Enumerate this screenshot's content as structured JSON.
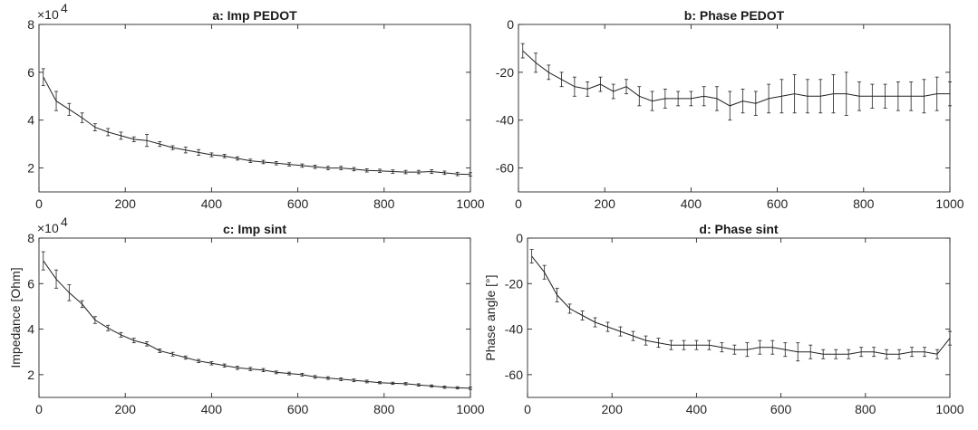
{
  "chart_data": [
    {
      "type": "line",
      "title": "a: Imp PEDOT",
      "xlabel": "",
      "ylabel": "",
      "exponent_label": "×10",
      "exponent_power": "4",
      "xlim": [
        0,
        1000
      ],
      "ylim": [
        10000,
        80000
      ],
      "xticks": [
        0,
        200,
        400,
        600,
        800,
        1000
      ],
      "yticks": [
        20000,
        40000,
        60000,
        80000
      ],
      "yticklabels": [
        "2",
        "4",
        "6",
        "8"
      ],
      "grid": false,
      "series": [
        {
          "x": [
            10,
            40,
            70,
            100,
            130,
            160,
            190,
            220,
            250,
            280,
            310,
            340,
            370,
            400,
            430,
            460,
            490,
            520,
            550,
            580,
            610,
            640,
            670,
            700,
            730,
            760,
            790,
            820,
            850,
            880,
            910,
            940,
            970,
            1000
          ],
          "y": [
            58000,
            48000,
            44500,
            41000,
            37000,
            35000,
            33500,
            32000,
            31500,
            30000,
            28500,
            27500,
            26500,
            25500,
            25000,
            24000,
            23000,
            22500,
            22000,
            21500,
            21000,
            20500,
            20000,
            20000,
            19500,
            19000,
            18800,
            18500,
            18300,
            18300,
            18500,
            18000,
            17500,
            17300
          ],
          "err": [
            3500,
            4000,
            2500,
            2000,
            1500,
            1500,
            1500,
            1000,
            2500,
            1000,
            800,
            1200,
            1200,
            800,
            700,
            700,
            700,
            700,
            700,
            700,
            700,
            700,
            700,
            700,
            700,
            700,
            700,
            700,
            700,
            700,
            800,
            700,
            700,
            700
          ]
        }
      ]
    },
    {
      "type": "line",
      "title": "b: Phase PEDOT",
      "xlabel": "",
      "ylabel": "",
      "xlim": [
        0,
        1000
      ],
      "ylim": [
        -70,
        0
      ],
      "xticks": [
        0,
        200,
        400,
        600,
        800,
        1000
      ],
      "yticks": [
        -60,
        -40,
        -20,
        0
      ],
      "yticklabels": [
        "-60",
        "-40",
        "-20",
        "0"
      ],
      "grid": false,
      "series": [
        {
          "x": [
            10,
            40,
            70,
            100,
            130,
            160,
            190,
            220,
            250,
            280,
            310,
            340,
            370,
            400,
            430,
            460,
            490,
            520,
            550,
            580,
            610,
            640,
            670,
            700,
            730,
            760,
            790,
            820,
            850,
            880,
            910,
            940,
            970,
            1000
          ],
          "y": [
            -11,
            -16,
            -20,
            -23,
            -26,
            -27,
            -25,
            -28,
            -26,
            -30,
            -32,
            -31,
            -31,
            -31,
            -30,
            -31,
            -34,
            -32,
            -33,
            -31,
            -30,
            -29,
            -30,
            -30,
            -29,
            -29,
            -30,
            -30,
            -30,
            -30,
            -30,
            -30,
            -29,
            -29
          ],
          "err": [
            3,
            4,
            3,
            3,
            4,
            3,
            3,
            3,
            3,
            4,
            4,
            4,
            3,
            3,
            4,
            5,
            6,
            5,
            5,
            6,
            7,
            8,
            7,
            7,
            8,
            9,
            6,
            5,
            5,
            6,
            6,
            7,
            7,
            5
          ]
        }
      ]
    },
    {
      "type": "line",
      "title": "c: Imp sint",
      "xlabel": "",
      "ylabel": "Impedance [Ohm]",
      "exponent_label": "×10",
      "exponent_power": "4",
      "xlim": [
        0,
        1000
      ],
      "ylim": [
        10000,
        80000
      ],
      "xticks": [
        0,
        200,
        400,
        600,
        800,
        1000
      ],
      "yticks": [
        20000,
        40000,
        60000,
        80000
      ],
      "yticklabels": [
        "2",
        "4",
        "6",
        "8"
      ],
      "grid": false,
      "series": [
        {
          "x": [
            10,
            40,
            70,
            100,
            130,
            160,
            190,
            220,
            250,
            280,
            310,
            340,
            370,
            400,
            430,
            460,
            490,
            520,
            550,
            580,
            610,
            640,
            670,
            700,
            730,
            760,
            790,
            820,
            850,
            880,
            910,
            940,
            970,
            1000
          ],
          "y": [
            70000,
            62000,
            56000,
            51000,
            44000,
            40500,
            37500,
            35000,
            33500,
            30500,
            29000,
            27500,
            26000,
            25000,
            24000,
            23000,
            22500,
            22000,
            21000,
            20500,
            20000,
            19000,
            18500,
            18000,
            17500,
            17000,
            16500,
            16200,
            16000,
            15500,
            15000,
            14500,
            14200,
            14000
          ],
          "err": [
            4000,
            4000,
            3500,
            1500,
            1500,
            1200,
            1000,
            1000,
            900,
            800,
            800,
            700,
            700,
            700,
            700,
            700,
            700,
            700,
            600,
            600,
            600,
            600,
            600,
            600,
            600,
            600,
            500,
            500,
            500,
            500,
            500,
            500,
            500,
            500
          ]
        }
      ]
    },
    {
      "type": "line",
      "title": "d: Phase sint",
      "xlabel": "",
      "ylabel": "Phase angle [°]",
      "xlim": [
        0,
        1000
      ],
      "ylim": [
        -70,
        0
      ],
      "xticks": [
        0,
        200,
        400,
        600,
        800,
        1000
      ],
      "yticks": [
        -60,
        -40,
        -20,
        0
      ],
      "yticklabels": [
        "-60",
        "-40",
        "-20",
        "0"
      ],
      "grid": false,
      "series": [
        {
          "x": [
            10,
            40,
            70,
            100,
            130,
            160,
            190,
            220,
            250,
            280,
            310,
            340,
            370,
            400,
            430,
            460,
            490,
            520,
            550,
            580,
            610,
            640,
            670,
            700,
            730,
            760,
            790,
            820,
            850,
            880,
            910,
            940,
            970,
            1000
          ],
          "y": [
            -8,
            -15,
            -25,
            -31,
            -34,
            -37,
            -39,
            -41,
            -43,
            -45,
            -46,
            -47,
            -47,
            -47,
            -47,
            -48,
            -49,
            -49,
            -48,
            -48,
            -49,
            -50,
            -50,
            -51,
            -51,
            -51,
            -50,
            -50,
            -51,
            -51,
            -50,
            -50,
            -51,
            -44
          ],
          "err": [
            3,
            3,
            3,
            2,
            2,
            2,
            2,
            2,
            2,
            2,
            2,
            2,
            2,
            2,
            2,
            2,
            2,
            3,
            3,
            3,
            3,
            4,
            3,
            2,
            2,
            2,
            2,
            2,
            2,
            2,
            2,
            2,
            2,
            3
          ]
        }
      ]
    }
  ]
}
